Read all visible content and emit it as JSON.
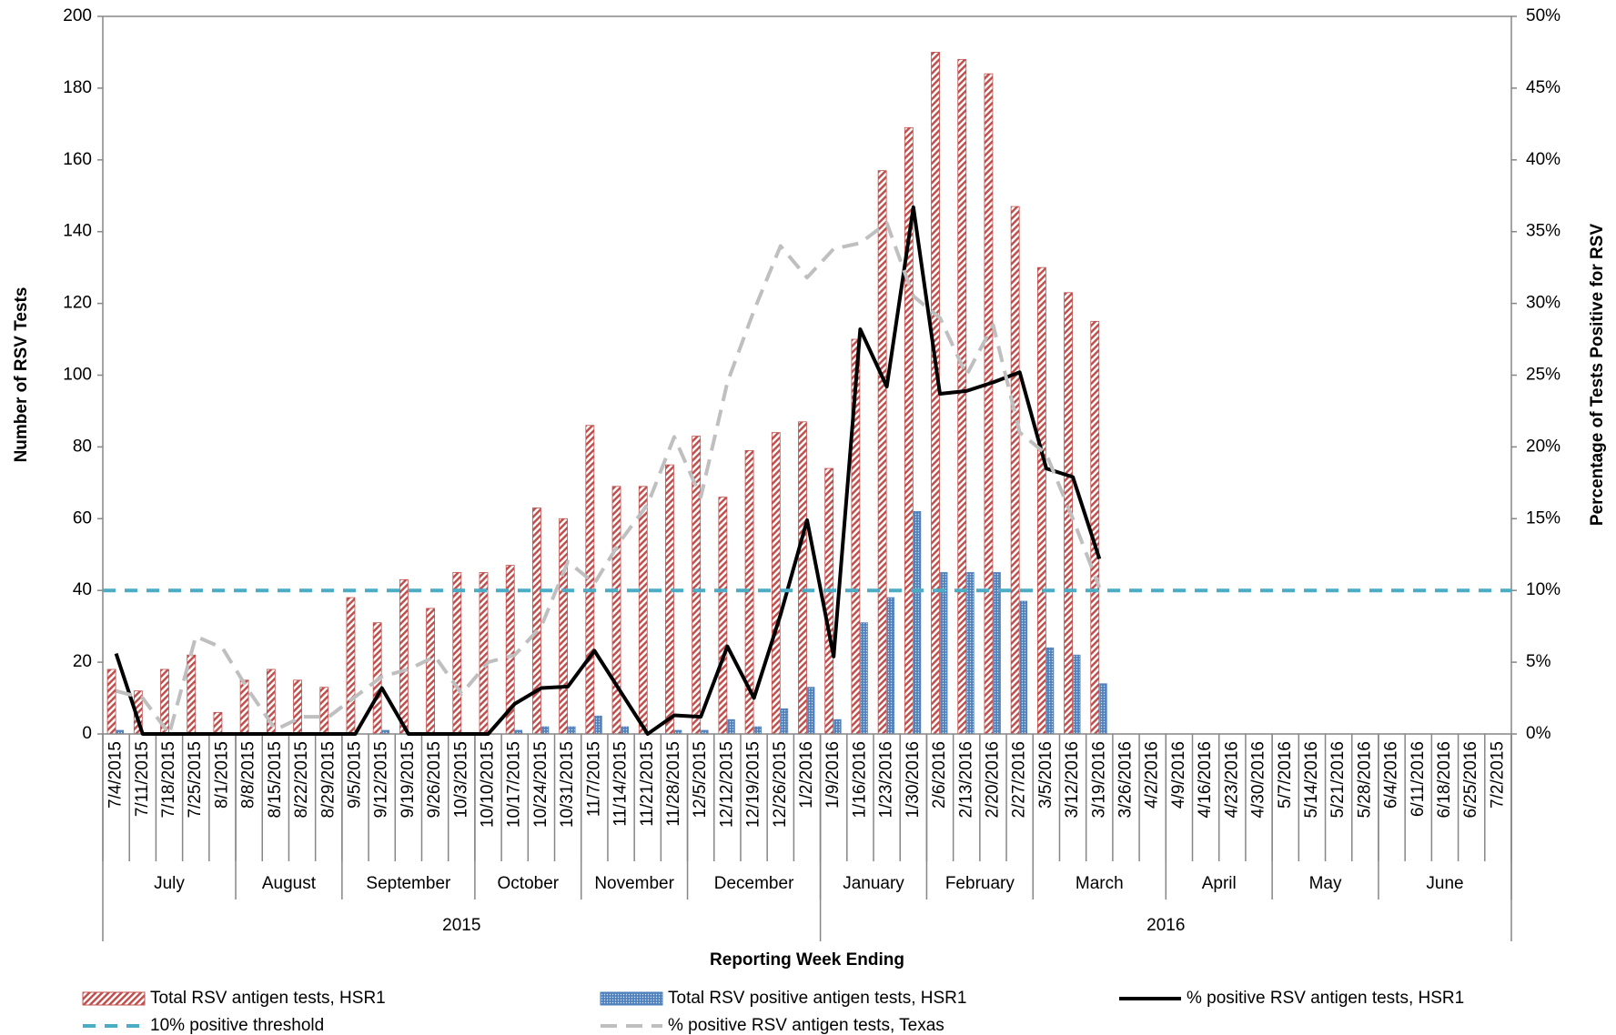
{
  "chart_data": {
    "type": "bar-line",
    "y_label": "Number of RSV Tests",
    "y2_label": "Percentage of Tests Positive for RSV",
    "x_label": "Reporting Week Ending",
    "ylim": [
      0,
      200
    ],
    "yticks": [
      0,
      20,
      40,
      60,
      80,
      100,
      120,
      140,
      160,
      180,
      200
    ],
    "y2lim": [
      0,
      50
    ],
    "y2ticks": [
      {
        "value": 0,
        "label": "0%"
      },
      {
        "value": 5,
        "label": "5%"
      },
      {
        "value": 10,
        "label": "10%"
      },
      {
        "value": 15,
        "label": "15%"
      },
      {
        "value": 20,
        "label": "20%"
      },
      {
        "value": 25,
        "label": "25%"
      },
      {
        "value": 30,
        "label": "30%"
      },
      {
        "value": 35,
        "label": "35%"
      },
      {
        "value": 40,
        "label": "40%"
      },
      {
        "value": 45,
        "label": "45%"
      },
      {
        "value": 50,
        "label": "50%"
      }
    ],
    "years": [
      {
        "label": "2015",
        "months": [
          {
            "label": "July",
            "weeks": [
              "7/4/2015",
              "7/11/2015",
              "7/18/2015",
              "7/25/2015",
              "8/1/2015"
            ]
          },
          {
            "label": "August",
            "weeks": [
              "8/8/2015",
              "8/15/2015",
              "8/22/2015",
              "8/29/2015"
            ]
          },
          {
            "label": "September",
            "weeks": [
              "9/5/2015",
              "9/12/2015",
              "9/19/2015",
              "9/26/2015",
              "10/3/2015"
            ]
          },
          {
            "label": "October",
            "weeks": [
              "10/10/2015",
              "10/17/2015",
              "10/24/2015",
              "10/31/2015"
            ]
          },
          {
            "label": "November",
            "weeks": [
              "11/7/2015",
              "11/14/2015",
              "11/21/2015",
              "11/28/2015"
            ]
          },
          {
            "label": "December",
            "weeks": [
              "12/5/2015",
              "12/12/2015",
              "12/19/2015",
              "12/26/2015",
              "1/2/2016"
            ]
          }
        ]
      },
      {
        "label": "2016",
        "months": [
          {
            "label": "January",
            "weeks": [
              "1/9/2016",
              "1/16/2016",
              "1/23/2016",
              "1/30/2016"
            ]
          },
          {
            "label": "February",
            "weeks": [
              "2/6/2016",
              "2/13/2016",
              "2/20/2016",
              "2/27/2016"
            ]
          },
          {
            "label": "March",
            "weeks": [
              "3/5/2016",
              "3/12/2016",
              "3/19/2016",
              "3/26/2016",
              "4/2/2016"
            ]
          },
          {
            "label": "April",
            "weeks": [
              "4/9/2016",
              "4/16/2016",
              "4/23/2016",
              "4/30/2016"
            ]
          },
          {
            "label": "May",
            "weeks": [
              "5/7/2016",
              "5/14/2016",
              "5/21/2016",
              "5/28/2016"
            ]
          },
          {
            "label": "June",
            "weeks": [
              "6/4/2016",
              "6/11/2016",
              "6/18/2016",
              "6/25/2016",
              "7/2/2015"
            ]
          }
        ]
      }
    ],
    "series": [
      {
        "name": "Total RSV antigen tests, HSR1",
        "type": "bar",
        "color": "#c0504d",
        "values": [
          18,
          12,
          18,
          22,
          6,
          15,
          18,
          15,
          13,
          38,
          31,
          43,
          35,
          45,
          45,
          47,
          63,
          60,
          86,
          69,
          69,
          75,
          83,
          66,
          79,
          84,
          87,
          74,
          110,
          157,
          169,
          190,
          188,
          184,
          147,
          130,
          123,
          115,
          null,
          null,
          null,
          null,
          null,
          null,
          null,
          null,
          null,
          null,
          null,
          null,
          null,
          null,
          null
        ]
      },
      {
        "name": "Total RSV positive antigen tests, HSR1",
        "type": "bar",
        "color": "#4f81bd",
        "values": [
          1,
          0,
          0,
          0,
          0,
          0,
          0,
          0,
          0,
          0,
          1,
          0,
          0,
          0,
          0,
          1,
          2,
          2,
          5,
          2,
          0,
          1,
          1,
          4,
          2,
          7,
          13,
          4,
          31,
          38,
          62,
          45,
          45,
          45,
          37,
          24,
          22,
          14,
          null,
          null,
          null,
          null,
          null,
          null,
          null,
          null,
          null,
          null,
          null,
          null,
          null,
          null,
          null
        ]
      },
      {
        "name": "% positive RSV antigen tests, HSR1",
        "type": "line",
        "axis": "y2",
        "color": "#000000",
        "dash": false,
        "values": [
          5.6,
          0,
          0,
          0,
          0,
          0,
          0,
          0,
          0,
          0,
          3.2,
          0,
          0,
          0,
          0,
          2.1,
          3.2,
          3.3,
          5.8,
          2.9,
          0,
          1.3,
          1.2,
          6.1,
          2.5,
          8.3,
          14.9,
          5.4,
          28.2,
          24.2,
          36.7,
          23.7,
          23.9,
          24.5,
          25.2,
          18.5,
          17.9,
          12.2,
          null,
          null,
          null,
          null,
          null,
          null,
          null,
          null,
          null,
          null,
          null,
          null,
          null,
          null,
          null
        ]
      },
      {
        "name": "10% positive threshold",
        "type": "threshold",
        "axis": "y2",
        "color": "#4bacc6",
        "dash": true,
        "value": 10
      },
      {
        "name": "% positive RSV antigen tests, Texas",
        "type": "line",
        "axis": "y2",
        "color": "#bfbfbf",
        "dash": true,
        "values": [
          3.0,
          2.5,
          0,
          6.8,
          6.0,
          3.0,
          0.3,
          1.2,
          1.2,
          2.6,
          4.0,
          4.5,
          5.4,
          2.8,
          5.0,
          5.5,
          7.5,
          12,
          10.5,
          13.5,
          16,
          20.7,
          16.5,
          24.5,
          29.5,
          34,
          31.8,
          33.8,
          34.2,
          35.6,
          30.5,
          29,
          25,
          28.5,
          21,
          19.5,
          15,
          10.2,
          null,
          null,
          null,
          null,
          null,
          null,
          null,
          null,
          null,
          null,
          null,
          null,
          null,
          null,
          null
        ]
      }
    ]
  }
}
